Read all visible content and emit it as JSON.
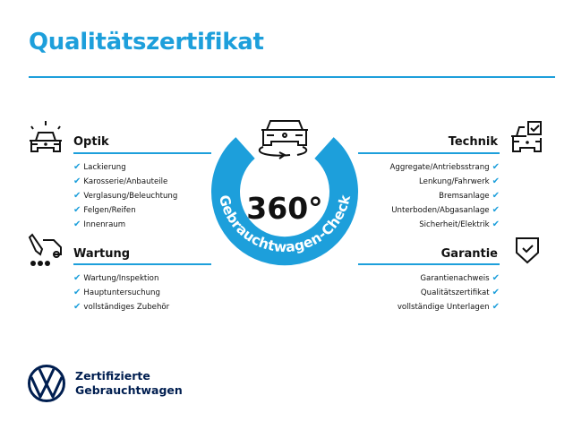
{
  "title": "Qualitätszertifikat",
  "colors": {
    "accent": "#1d9fdb",
    "brand": "#001e50"
  },
  "check_icon": "✔",
  "center": {
    "value": "360°",
    "ring_text": "Gebrauchtwagen-Check",
    "icon": "car-rotate-icon"
  },
  "sections": {
    "optik": {
      "heading": "Optik",
      "icon": "car-lights-icon",
      "items": [
        "Lackierung",
        "Karosserie/Anbauteile",
        "Verglasung/Beleuchtung",
        "Felgen/Reifen",
        "Innenraum"
      ]
    },
    "wartung": {
      "heading": "Wartung",
      "icon": "service-truck-icon",
      "items": [
        "Wartung/Inspektion",
        "Hauptuntersuchung",
        "vollständiges Zubehör"
      ]
    },
    "technik": {
      "heading": "Technik",
      "icon": "car-checkbox-icon",
      "items": [
        "Aggregate/Antriebsstrang",
        "Lenkung/Fahrwerk",
        "Bremsanlage",
        "Unterboden/Abgasanlage",
        "Sicherheit/Elektrik"
      ]
    },
    "garantie": {
      "heading": "Garantie",
      "icon": "shield-check-icon",
      "items": [
        "Garantienachweis",
        "Qualitätszertifikat",
        "vollständige Unterlagen"
      ]
    }
  },
  "brand": {
    "line1": "Zertifizierte",
    "line2": "Gebrauchtwagen",
    "logo": "vw-logo"
  }
}
